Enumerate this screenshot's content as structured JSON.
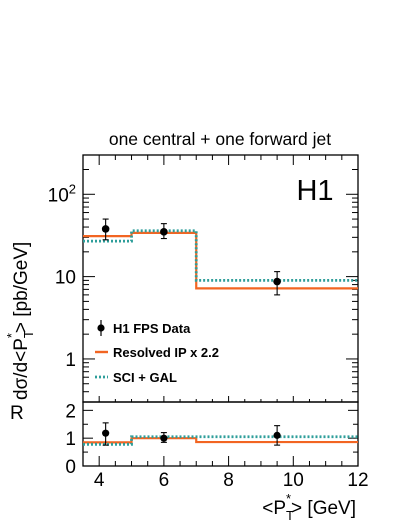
{
  "chart_data": {
    "type": "line",
    "title": "one central + one forward jet",
    "experiment_label": "H1",
    "xlabel": {
      "main": "<P",
      "sub": "T",
      "sup": "*",
      "tail": "> [GeV]"
    },
    "ylabel": {
      "main": "dσ/d<P",
      "sub": "T",
      "sup": "*",
      "tail": "> [pb/GeV]"
    },
    "ratio_ylabel": "R",
    "log_y": true,
    "xlim": [
      3.5,
      12
    ],
    "ylim": [
      0.3,
      300
    ],
    "ratio_ylim": [
      0,
      2.3
    ],
    "x_ticks": [
      {
        "value": 4,
        "label": "4"
      },
      {
        "value": 6,
        "label": "6"
      },
      {
        "value": 8,
        "label": "8"
      },
      {
        "value": 10,
        "label": "10"
      },
      {
        "value": 12,
        "label": "12"
      }
    ],
    "y_ticks": [
      {
        "value": 1,
        "label": "1"
      },
      {
        "value": 10,
        "label": "10"
      },
      {
        "value": 100,
        "label": "10",
        "exp": "2"
      }
    ],
    "ratio_ticks": [
      {
        "value": 0,
        "label": "0"
      },
      {
        "value": 1,
        "label": "1"
      },
      {
        "value": 2,
        "label": "2"
      }
    ],
    "bins": [
      [
        3.5,
        5
      ],
      [
        5,
        7
      ],
      [
        7,
        12
      ]
    ],
    "series": [
      {
        "name": "H1 FPS Data",
        "kind": "points",
        "color": "#000000",
        "x": [
          4.2,
          6.0,
          9.5
        ],
        "y": [
          38,
          35,
          8.7
        ],
        "err_stat": [
          [
            31,
            46
          ],
          [
            30,
            41
          ],
          [
            7.3,
            10.5
          ]
        ],
        "err_tot": [
          [
            28,
            50
          ],
          [
            29,
            44
          ],
          [
            6.0,
            11.5
          ]
        ],
        "ratio": [
          1.18,
          1.0,
          1.1
        ],
        "ratio_err": [
          [
            0.75,
            1.55
          ],
          [
            0.85,
            1.2
          ],
          [
            0.75,
            1.45
          ]
        ]
      },
      {
        "name": "Resolved IP x 2.2",
        "kind": "histogram",
        "color": "#f26522",
        "style": "solid",
        "values": [
          31,
          34,
          7.2
        ],
        "ratio": [
          0.85,
          1.0,
          0.86
        ]
      },
      {
        "name": "SCI + GAL",
        "kind": "histogram",
        "color": "#2e9e9a",
        "style": "dotted",
        "values": [
          27,
          36,
          9.0
        ],
        "ratio": [
          0.78,
          1.05,
          1.05
        ]
      }
    ]
  }
}
